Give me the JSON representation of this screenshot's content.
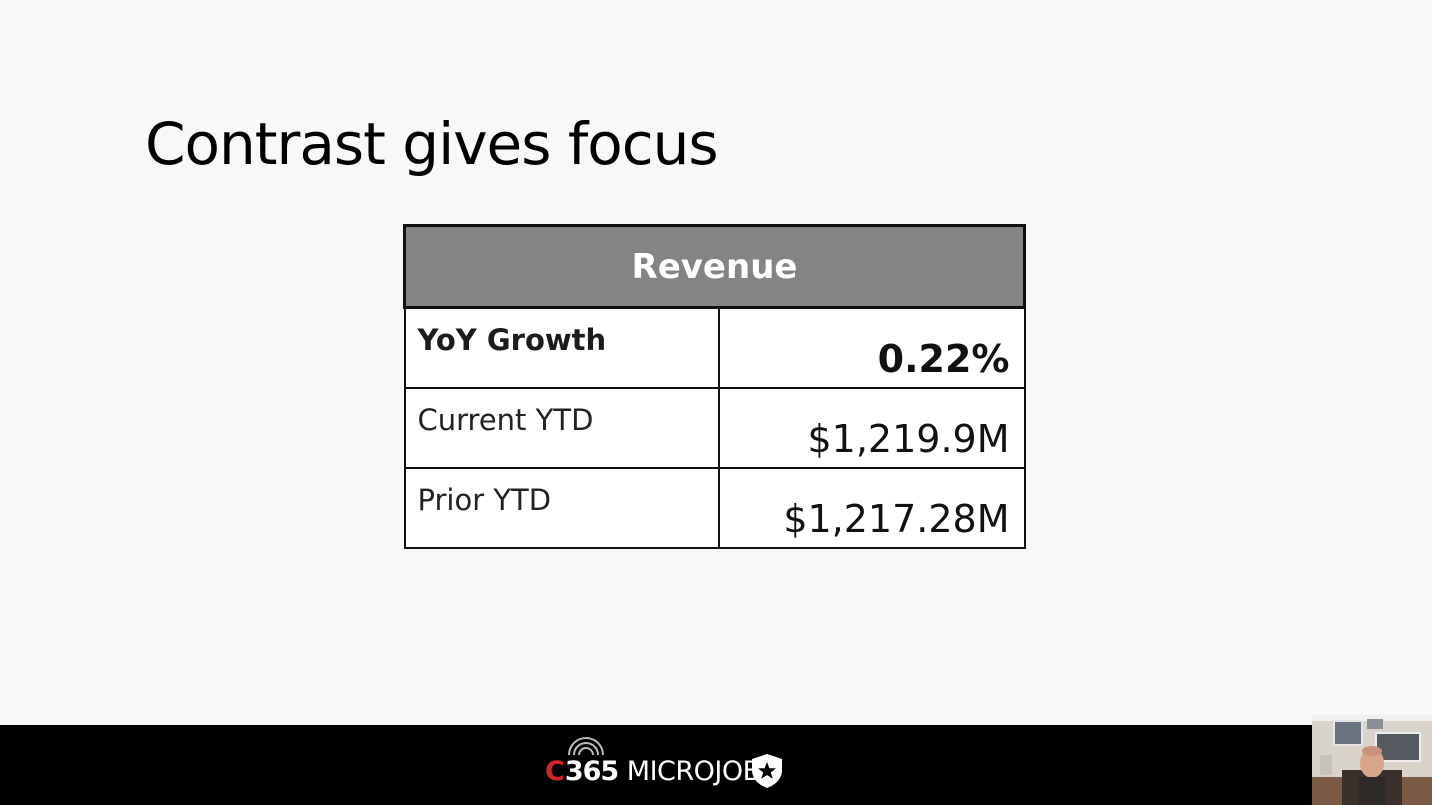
{
  "slide": {
    "title": "Contrast gives focus"
  },
  "table": {
    "header": "Revenue",
    "rows": [
      {
        "label": "YoY Growth",
        "value": "0.22%",
        "emphasis": true
      },
      {
        "label": "Current YTD",
        "value": "$1,219.9M",
        "emphasis": false
      },
      {
        "label": "Prior YTD",
        "value": "$1,217.28M",
        "emphasis": false
      }
    ]
  },
  "footer": {
    "logo_c": "C",
    "logo_number": "365",
    "logo_word": "MICROJOBS",
    "logo_icon": "shield-star-icon",
    "brand_color": "#d6222a"
  },
  "colors": {
    "header_bg": "#858386",
    "slide_bg": "#f8f7f9",
    "footer_bg": "#000000"
  }
}
